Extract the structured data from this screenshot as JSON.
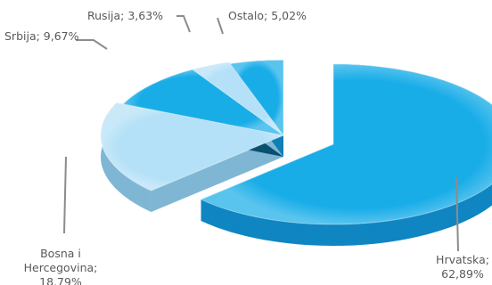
{
  "chart_data": {
    "type": "pie",
    "style": "3d-exploded",
    "title": "",
    "legend": "none",
    "slices": [
      {
        "name": "Hrvatska",
        "value": 62.89,
        "label": "Hrvatska;",
        "value_label": "62,89%",
        "color": "#19ade8"
      },
      {
        "name": "Bosna i Hercegovina",
        "value": 18.79,
        "label_lines": [
          "Bosna i",
          "Hercegovina;"
        ],
        "value_label": "18,79%",
        "color": "#b4e1f7"
      },
      {
        "name": "Srbija",
        "value": 9.67,
        "label": "Srbija; 9,67%",
        "color": "#19ade8"
      },
      {
        "name": "Rusija",
        "value": 3.63,
        "label": "Rusija; 3,63%",
        "color": "#b4e1f7"
      },
      {
        "name": "Ostalo",
        "value": 5.02,
        "label": "Ostalo; 5,02%",
        "color": "#19ade8"
      }
    ]
  }
}
